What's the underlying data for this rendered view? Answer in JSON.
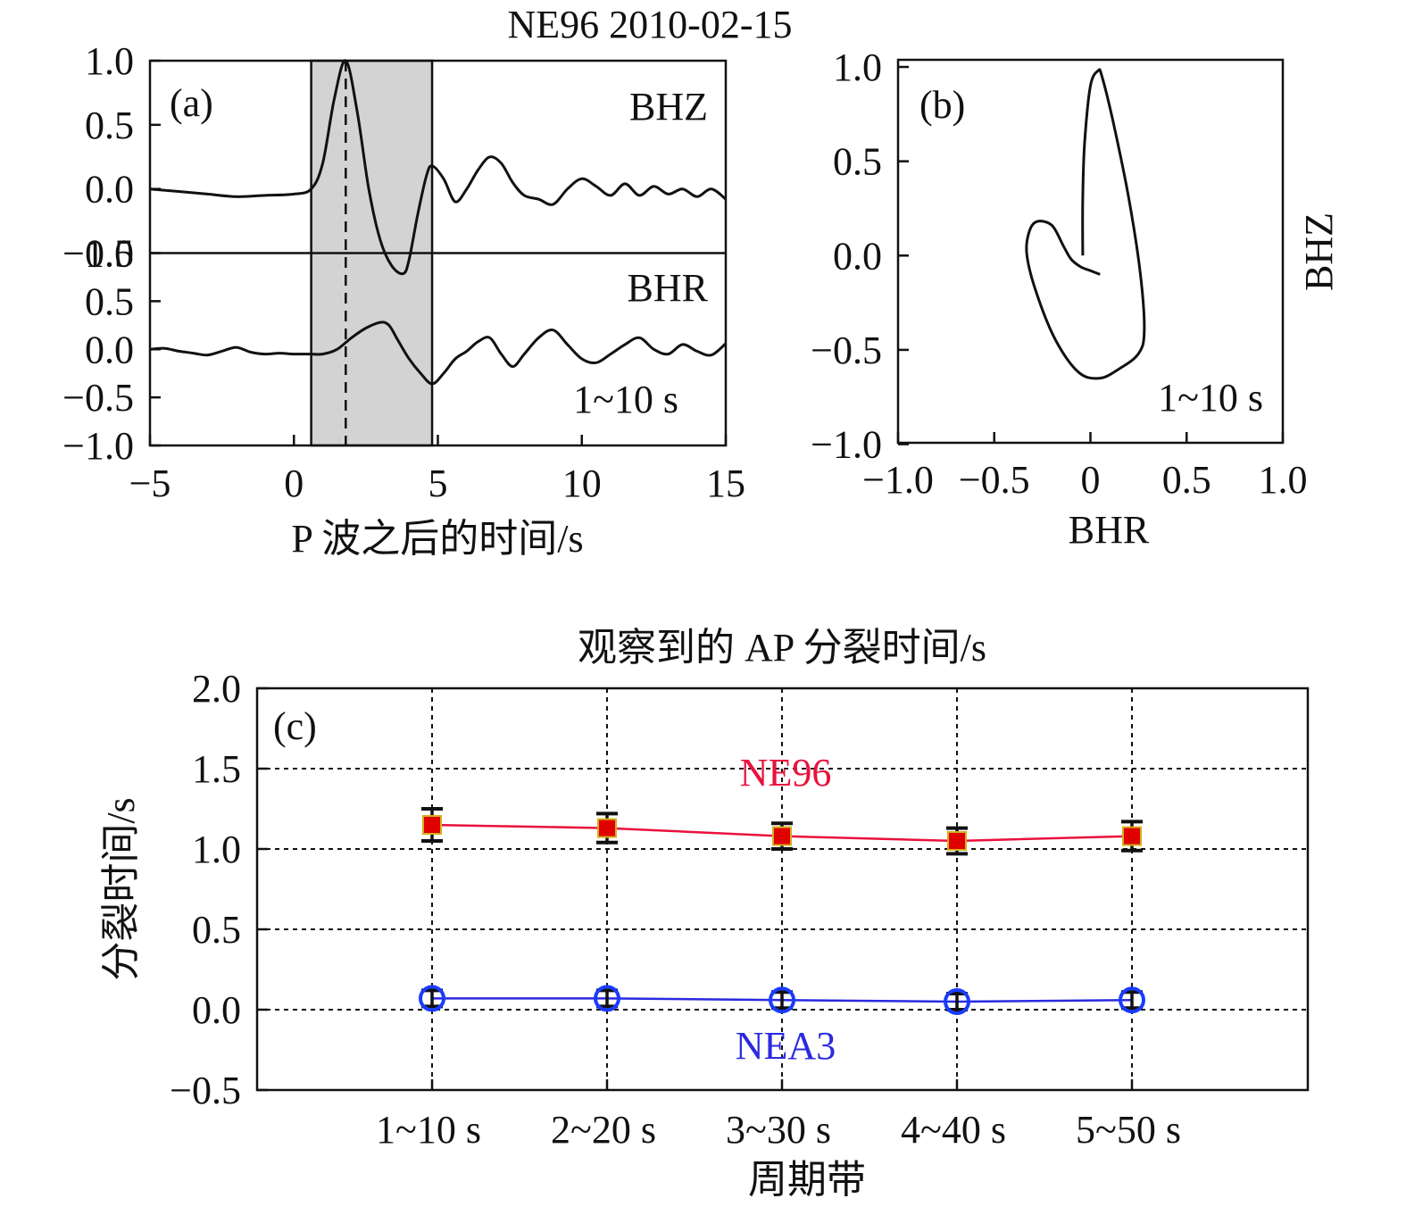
{
  "figure_title": "NE96  2010-02-15",
  "colors": {
    "ne96": "#e8123c",
    "ne96_marker": "#e00000",
    "nea3": "#2a2ae0",
    "nea3_marker": "#1a3cff",
    "window": "#d3d3d3",
    "errbar": "#111111",
    "marker_fill": "#d4b020"
  },
  "chart_data": [
    {
      "panel": "(a)",
      "type": "line",
      "xlabel": "P 波之后的时间/s",
      "xlim": [
        -5,
        15
      ],
      "x_ticks": [
        "−5",
        "0",
        "5",
        "10",
        "15"
      ],
      "x_tick_values": [
        -5,
        0,
        5,
        10,
        15
      ],
      "window_x": [
        0.6,
        4.8
      ],
      "peak_marker_x": 1.8,
      "period_band": "1~10 s",
      "series": [
        {
          "name": "BHZ",
          "ylim": [
            -0.5,
            1.0
          ],
          "y_ticks": [
            "1.0",
            "0.5",
            "0.0",
            "−0.5"
          ],
          "y_tick_values": [
            1.0,
            0.5,
            0.0,
            -0.5
          ],
          "x": [
            -5,
            -4,
            -3,
            -2,
            -1,
            0,
            0.6,
            1.0,
            1.4,
            1.8,
            2.2,
            2.6,
            3.0,
            3.4,
            3.8,
            4.0,
            4.3,
            4.6,
            4.8,
            5.2,
            5.6,
            6.0,
            6.4,
            6.8,
            7.2,
            7.6,
            8.0,
            8.5,
            9.0,
            9.5,
            10.0,
            10.5,
            11.0,
            11.5,
            12.0,
            12.5,
            13.0,
            13.5,
            14.0,
            14.5,
            15.0
          ],
          "y": [
            0.0,
            -0.02,
            -0.04,
            -0.06,
            -0.05,
            -0.04,
            0.0,
            0.2,
            0.7,
            1.0,
            0.6,
            0.0,
            -0.4,
            -0.6,
            -0.66,
            -0.55,
            -0.2,
            0.1,
            0.18,
            0.08,
            -0.1,
            0.0,
            0.15,
            0.25,
            0.2,
            0.05,
            -0.05,
            -0.08,
            -0.12,
            0.0,
            0.08,
            0.02,
            -0.05,
            0.04,
            -0.05,
            0.02,
            -0.04,
            0.0,
            -0.06,
            0.0,
            -0.08
          ]
        },
        {
          "name": "BHR",
          "ylim": [
            -1.0,
            1.0
          ],
          "y_ticks": [
            "1.0",
            "0.5",
            "0.0",
            "−0.5",
            "−1.0"
          ],
          "y_tick_values": [
            1.0,
            0.5,
            0.0,
            -0.5,
            -1.0
          ],
          "x": [
            -5,
            -4.5,
            -4,
            -3.5,
            -3,
            -2.5,
            -2,
            -1.5,
            -1,
            -0.5,
            0,
            0.5,
            1.0,
            1.5,
            2.0,
            2.5,
            3.0,
            3.3,
            3.6,
            4.0,
            4.4,
            4.8,
            5.2,
            5.6,
            6.0,
            6.4,
            6.8,
            7.2,
            7.6,
            8.0,
            8.5,
            9.0,
            9.5,
            10.0,
            10.5,
            11.0,
            11.5,
            12.0,
            12.5,
            13.0,
            13.5,
            14.0,
            14.5,
            15.0
          ],
          "y": [
            0.0,
            0.01,
            -0.02,
            -0.04,
            -0.06,
            -0.02,
            0.02,
            -0.03,
            -0.05,
            -0.04,
            -0.05,
            -0.05,
            -0.05,
            0.0,
            0.12,
            0.22,
            0.28,
            0.25,
            0.1,
            -0.1,
            -0.25,
            -0.36,
            -0.25,
            -0.1,
            -0.02,
            0.08,
            0.12,
            -0.05,
            -0.18,
            -0.05,
            0.12,
            0.2,
            0.05,
            -0.1,
            -0.14,
            -0.05,
            0.05,
            0.12,
            0.0,
            -0.05,
            0.05,
            -0.02,
            -0.06,
            0.06
          ]
        }
      ]
    },
    {
      "panel": "(b)",
      "type": "line",
      "xlabel": "BHR",
      "ylabel": "BHZ",
      "xlim": [
        -1.0,
        1.0
      ],
      "ylim": [
        -1.0,
        1.0
      ],
      "x_ticks": [
        "−1.0",
        "−0.5",
        "0",
        "0.5",
        "1.0"
      ],
      "x_tick_values": [
        -1.0,
        -0.5,
        0,
        0.5,
        1.0
      ],
      "y_ticks": [
        "1.0",
        "0.5",
        "0.0",
        "−0.5",
        "−1.0"
      ],
      "y_tick_values": [
        1.0,
        0.5,
        0.0,
        -0.5,
        -1.0
      ],
      "period_band": "1~10 s",
      "x": [
        0.05,
        0.0,
        -0.05,
        -0.1,
        -0.14,
        -0.2,
        -0.28,
        -0.32,
        -0.33,
        -0.28,
        -0.18,
        -0.06,
        0.05,
        0.15,
        0.25,
        0.28,
        0.26,
        0.2,
        0.12,
        0.06,
        0.04,
        0.0,
        -0.03,
        -0.04,
        -0.04
      ],
      "y": [
        -0.1,
        -0.08,
        -0.06,
        -0.02,
        0.05,
        0.16,
        0.18,
        0.12,
        0.0,
        -0.2,
        -0.45,
        -0.62,
        -0.65,
        -0.6,
        -0.52,
        -0.4,
        -0.1,
        0.3,
        0.7,
        0.95,
        0.98,
        0.9,
        0.6,
        0.3,
        0.0
      ]
    },
    {
      "panel": "(c)",
      "type": "line",
      "title": "观察到的 AP 分裂时间/s",
      "xlabel": "周期带",
      "ylabel": "分裂时间/s",
      "categories": [
        "1~10 s",
        "2~20 s",
        "3~30 s",
        "4~40 s",
        "5~50 s"
      ],
      "ylim": [
        -0.5,
        2.0
      ],
      "y_ticks": [
        "2.0",
        "1.5",
        "1.0",
        "0.5",
        "0.0",
        "−0.5"
      ],
      "y_tick_values": [
        2.0,
        1.5,
        1.0,
        0.5,
        0.0,
        -0.5
      ],
      "grid": true,
      "series": [
        {
          "name": "NE96",
          "values": [
            1.15,
            1.13,
            1.08,
            1.05,
            1.08
          ],
          "err": [
            0.1,
            0.09,
            0.08,
            0.08,
            0.09
          ]
        },
        {
          "name": "NEA3",
          "values": [
            0.07,
            0.07,
            0.06,
            0.05,
            0.06
          ],
          "err": [
            0.05,
            0.05,
            0.05,
            0.05,
            0.05
          ]
        }
      ]
    }
  ]
}
